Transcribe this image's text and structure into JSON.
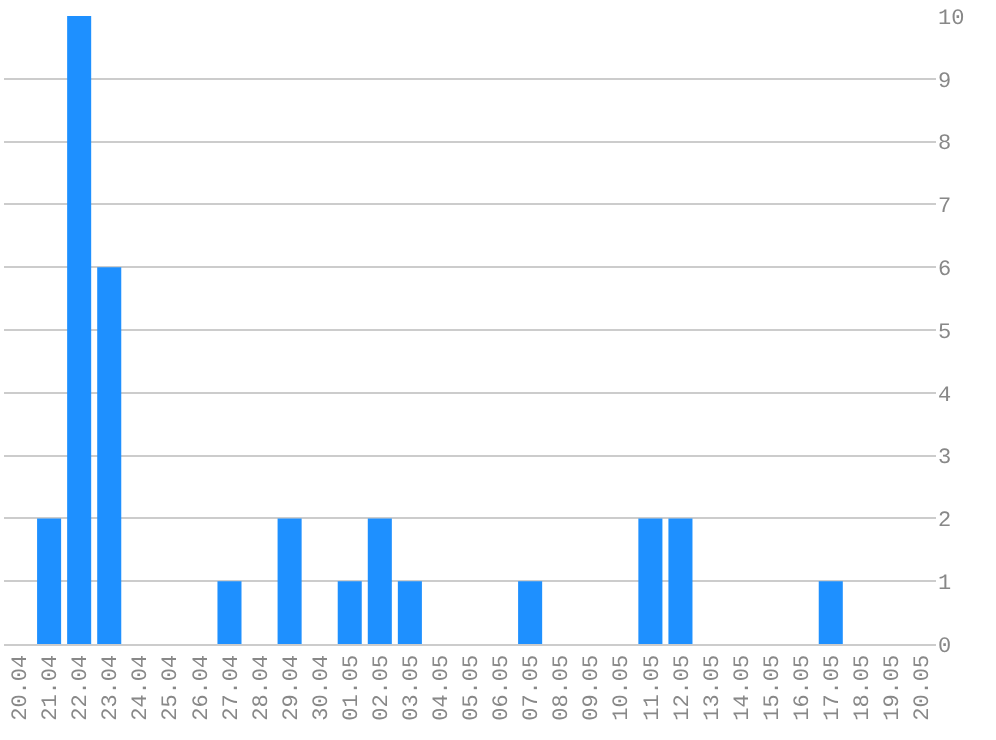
{
  "chart_data": {
    "type": "bar",
    "categories": [
      "20.04",
      "21.04",
      "22.04",
      "23.04",
      "24.04",
      "25.04",
      "26.04",
      "27.04",
      "28.04",
      "29.04",
      "30.04",
      "01.05",
      "02.05",
      "03.05",
      "04.05",
      "05.05",
      "06.05",
      "07.05",
      "08.05",
      "09.05",
      "10.05",
      "11.05",
      "12.05",
      "13.05",
      "14.05",
      "15.05",
      "16.05",
      "17.05",
      "18.05",
      "19.05",
      "20.05"
    ],
    "values": [
      0,
      2,
      10,
      6,
      0,
      0,
      0,
      1,
      0,
      2,
      0,
      1,
      2,
      1,
      0,
      0,
      0,
      1,
      0,
      0,
      0,
      2,
      2,
      0,
      0,
      0,
      0,
      1,
      0,
      0,
      0
    ],
    "color": "#1e90ff",
    "ylim": [
      0,
      10
    ],
    "yticks": [
      0,
      1,
      2,
      3,
      4,
      5,
      6,
      7,
      8,
      9,
      10
    ],
    "grid": "y"
  }
}
